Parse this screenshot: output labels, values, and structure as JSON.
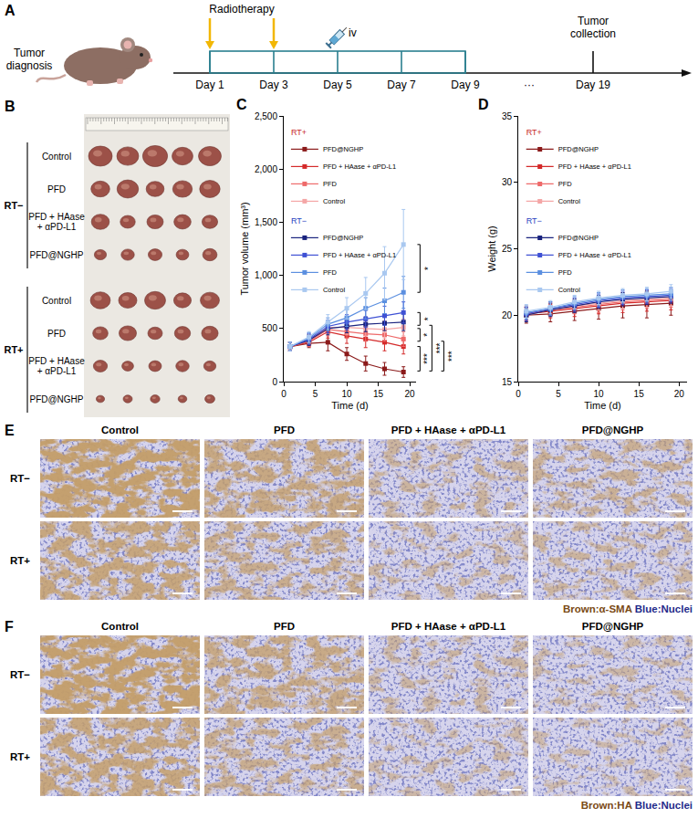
{
  "figure": {
    "A": {
      "letter": "A",
      "subject": "Tumor diagnosis",
      "treatments": [
        {
          "label": "Radiotherapy",
          "days": [
            "Day 1",
            "Day 3"
          ]
        },
        {
          "label": "iv",
          "days": [
            "Day 5"
          ]
        }
      ],
      "timeline": [
        "Day 1",
        "Day 3",
        "Day 5",
        "Day 7",
        "Day 9",
        "···",
        "Day 19"
      ],
      "endpoint": {
        "label": "Tumor collection",
        "day": "Day 19"
      }
    },
    "B": {
      "letter": "B",
      "groups": [
        "RT−",
        "RT+"
      ],
      "rows": [
        "Control",
        "PFD",
        "PFD + HAase + αPD-L1",
        "PFD@NGHP"
      ]
    },
    "E": {
      "letter": "E",
      "columns": [
        "Control",
        "PFD",
        "PFD + HAase + αPD-L1",
        "PFD@NGHP"
      ],
      "rows": [
        "RT−",
        "RT+"
      ],
      "stain": [
        {
          "text": "Brown:α-SMA",
          "color": "#7a4a14"
        },
        {
          "text": "Blue:Nuclei",
          "color": "#1f2a8a"
        }
      ]
    },
    "F": {
      "letter": "F",
      "columns": [
        "Control",
        "PFD",
        "PFD + HAase + αPD-L1",
        "PFD@NGHP"
      ],
      "rows": [
        "RT−",
        "RT+"
      ],
      "stain": [
        {
          "text": "Brown:HA",
          "color": "#7a4a14"
        },
        {
          "text": "Blue:Nuclei",
          "color": "#1f2a8a"
        }
      ]
    }
  },
  "chart_data": [
    {
      "panel": "C",
      "type": "line",
      "marker": "square",
      "grid": false,
      "legend": "upper left",
      "xlabel": "Time (d)",
      "ylabel": "Tumor volume (mm³)",
      "x": [
        1,
        4,
        7,
        10,
        13,
        16,
        19
      ],
      "xlim": [
        0,
        21
      ],
      "xticks": [
        0,
        5,
        10,
        15,
        20
      ],
      "ylim": [
        0,
        2500
      ],
      "yticks": [
        0,
        500,
        {
          "value": 1000,
          "label": "1,000"
        },
        {
          "value": 1500,
          "label": "1,500"
        },
        {
          "value": 2000,
          "label": "2,000"
        },
        {
          "value": 2500,
          "label": "2,500"
        }
      ],
      "groups": [
        {
          "name": "RT+",
          "color": "#c62828"
        },
        {
          "name": "RT−",
          "color": "#1f3fbf"
        }
      ],
      "series": [
        {
          "group": "RT+",
          "name": "PFD@NGHP",
          "color": "#8b1a1a",
          "values": [
            330,
            360,
            370,
            260,
            170,
            120,
            90
          ],
          "errors": [
            40,
            40,
            80,
            60,
            70,
            60,
            50
          ]
        },
        {
          "group": "RT+",
          "name": "PFD + HAase + αPD-L1",
          "color": "#d42a2a",
          "values": [
            330,
            370,
            470,
            430,
            400,
            370,
            330
          ],
          "errors": [
            40,
            40,
            60,
            70,
            80,
            80,
            70
          ]
        },
        {
          "group": "RT+",
          "name": "PFD",
          "color": "#ee6a6a",
          "values": [
            330,
            380,
            490,
            470,
            450,
            440,
            400
          ],
          "errors": [
            40,
            50,
            60,
            60,
            70,
            60,
            70
          ]
        },
        {
          "group": "RT+",
          "name": "Control",
          "color": "#f4a6a6",
          "values": [
            330,
            390,
            510,
            510,
            500,
            490,
            510
          ],
          "errors": [
            40,
            50,
            60,
            70,
            70,
            80,
            80
          ]
        },
        {
          "group": "RT−",
          "name": "PFD@NGHP",
          "color": "#1a237e",
          "values": [
            330,
            390,
            500,
            520,
            540,
            550,
            560
          ],
          "errors": [
            40,
            50,
            60,
            60,
            70,
            70,
            80
          ]
        },
        {
          "group": "RT−",
          "name": "PFD + HAase + αPD-L1",
          "color": "#3f51d4",
          "values": [
            330,
            400,
            520,
            560,
            590,
            620,
            650
          ],
          "errors": [
            40,
            50,
            60,
            70,
            80,
            90,
            100
          ]
        },
        {
          "group": "RT−",
          "name": "PFD",
          "color": "#5b8fe0",
          "values": [
            330,
            410,
            540,
            600,
            690,
            760,
            840
          ],
          "errors": [
            40,
            50,
            60,
            80,
            100,
            120,
            150
          ]
        },
        {
          "group": "RT−",
          "name": "Control",
          "color": "#a9c8f0",
          "values": [
            330,
            420,
            560,
            690,
            830,
            1020,
            1290
          ],
          "errors": [
            40,
            50,
            70,
            100,
            150,
            250,
            330
          ]
        }
      ],
      "annotations": [
        {
          "text": "*",
          "y": [
            1290,
            840
          ]
        },
        {
          "text": "*",
          "y": [
            650,
            530
          ]
        },
        {
          "text": "*",
          "y": [
            500,
            380
          ]
        },
        {
          "text": "***",
          "y": [
            530,
            100
          ]
        },
        {
          "text": "***",
          "y": [
            380,
            100
          ]
        },
        {
          "text": "***",
          "y": [
            330,
            100
          ]
        }
      ]
    },
    {
      "panel": "D",
      "type": "line",
      "marker": "square",
      "grid": false,
      "legend": "upper left",
      "xlabel": "Time (d)",
      "ylabel": "Weight (g)",
      "x": [
        1,
        4,
        7,
        10,
        13,
        16,
        19
      ],
      "xlim": [
        0,
        21
      ],
      "xticks": [
        0,
        5,
        10,
        15,
        20
      ],
      "ylim": [
        15,
        35
      ],
      "yticks": [
        15,
        20,
        25,
        30,
        35
      ],
      "groups": [
        {
          "name": "RT+",
          "color": "#c62828"
        },
        {
          "name": "RT−",
          "color": "#1f3fbf"
        }
      ],
      "series": [
        {
          "group": "RT+",
          "name": "PFD@NGHP",
          "color": "#8b1a1a",
          "values": [
            20.0,
            20.1,
            20.3,
            20.5,
            20.7,
            20.8,
            20.9
          ],
          "errors": [
            0.6,
            0.6,
            0.7,
            0.8,
            0.9,
            1.0,
            0.9
          ]
        },
        {
          "group": "RT+",
          "name": "PFD + HAase + αPD-L1",
          "color": "#d42a2a",
          "values": [
            20.1,
            20.3,
            20.5,
            20.7,
            20.9,
            21.0,
            21.1
          ],
          "errors": [
            0.5,
            0.5,
            0.6,
            0.6,
            0.7,
            0.7,
            0.7
          ]
        },
        {
          "group": "RT+",
          "name": "PFD",
          "color": "#ee6a6a",
          "values": [
            20.1,
            20.4,
            20.6,
            20.8,
            21.0,
            21.1,
            21.2
          ],
          "errors": [
            0.5,
            0.5,
            0.5,
            0.6,
            0.6,
            0.6,
            0.6
          ]
        },
        {
          "group": "RT+",
          "name": "Control",
          "color": "#f4a6a6",
          "values": [
            20.2,
            20.4,
            20.7,
            20.9,
            21.1,
            21.2,
            21.3
          ],
          "errors": [
            0.5,
            0.5,
            0.5,
            0.5,
            0.6,
            0.6,
            0.6
          ]
        },
        {
          "group": "RT−",
          "name": "PFD@NGHP",
          "color": "#1a237e",
          "values": [
            20.0,
            20.4,
            20.7,
            21.0,
            21.2,
            21.3,
            21.4
          ],
          "errors": [
            0.5,
            0.5,
            0.5,
            0.5,
            0.5,
            0.5,
            0.5
          ]
        },
        {
          "group": "RT−",
          "name": "PFD + HAase + αPD-L1",
          "color": "#3f51d4",
          "values": [
            20.1,
            20.5,
            20.8,
            21.1,
            21.3,
            21.4,
            21.5
          ],
          "errors": [
            0.5,
            0.5,
            0.5,
            0.5,
            0.5,
            0.5,
            0.5
          ]
        },
        {
          "group": "RT−",
          "name": "PFD",
          "color": "#5b8fe0",
          "values": [
            20.2,
            20.5,
            20.9,
            21.2,
            21.4,
            21.5,
            21.6
          ],
          "errors": [
            0.5,
            0.5,
            0.5,
            0.5,
            0.5,
            0.5,
            0.5
          ]
        },
        {
          "group": "RT−",
          "name": "Control",
          "color": "#a9c8f0",
          "values": [
            20.3,
            20.6,
            21.0,
            21.3,
            21.5,
            21.6,
            21.8
          ],
          "errors": [
            0.5,
            0.5,
            0.5,
            0.5,
            0.5,
            0.5,
            0.5
          ]
        }
      ]
    }
  ]
}
